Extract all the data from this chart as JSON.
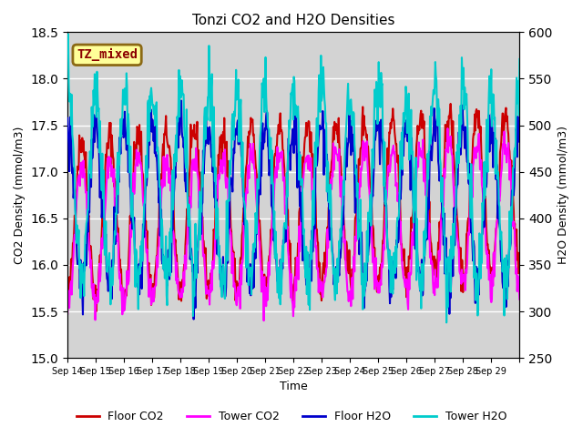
{
  "title": "Tonzi CO2 and H2O Densities",
  "xlabel": "Time",
  "ylabel_left": "CO2 Density (mmol/m3)",
  "ylabel_right": "H2O Density (mmol/m3)",
  "annotation_text": "TZ_mixed",
  "annotation_color": "#8B0000",
  "annotation_bg": "#FFFF99",
  "annotation_border": "#8B6914",
  "co2_ylim": [
    15.0,
    18.5
  ],
  "h2o_ylim": [
    250,
    600
  ],
  "co2_yticks": [
    15.0,
    15.5,
    16.0,
    16.5,
    17.0,
    17.5,
    18.0,
    18.5
  ],
  "h2o_yticks": [
    250,
    300,
    350,
    400,
    450,
    500,
    550,
    600
  ],
  "n_days": 16,
  "n_per_day": 48,
  "background_color": "#D3D3D3",
  "grid_color": "#FFFFFF",
  "floor_co2_color": "#CC0000",
  "tower_co2_color": "#FF00FF",
  "floor_h2o_color": "#0000CC",
  "tower_h2o_color": "#00CCCC",
  "linewidth": 1.5,
  "legend_labels": [
    "Floor CO2",
    "Tower CO2",
    "Floor H2O",
    "Tower H2O"
  ],
  "xtick_positions": [
    0,
    1,
    2,
    3,
    4,
    5,
    6,
    7,
    8,
    9,
    10,
    11,
    12,
    13,
    14,
    15,
    16
  ],
  "xtick_labels": [
    "Sep 14",
    "Sep 15",
    "Sep 16",
    "Sep 17",
    "Sep 18",
    "Sep 19",
    "Sep 20",
    "Sep 21",
    "Sep 22",
    "Sep 23",
    "Sep 24",
    "Sep 25",
    "Sep 26",
    "Sep 27",
    "Sep 28",
    "Sep 29",
    ""
  ]
}
